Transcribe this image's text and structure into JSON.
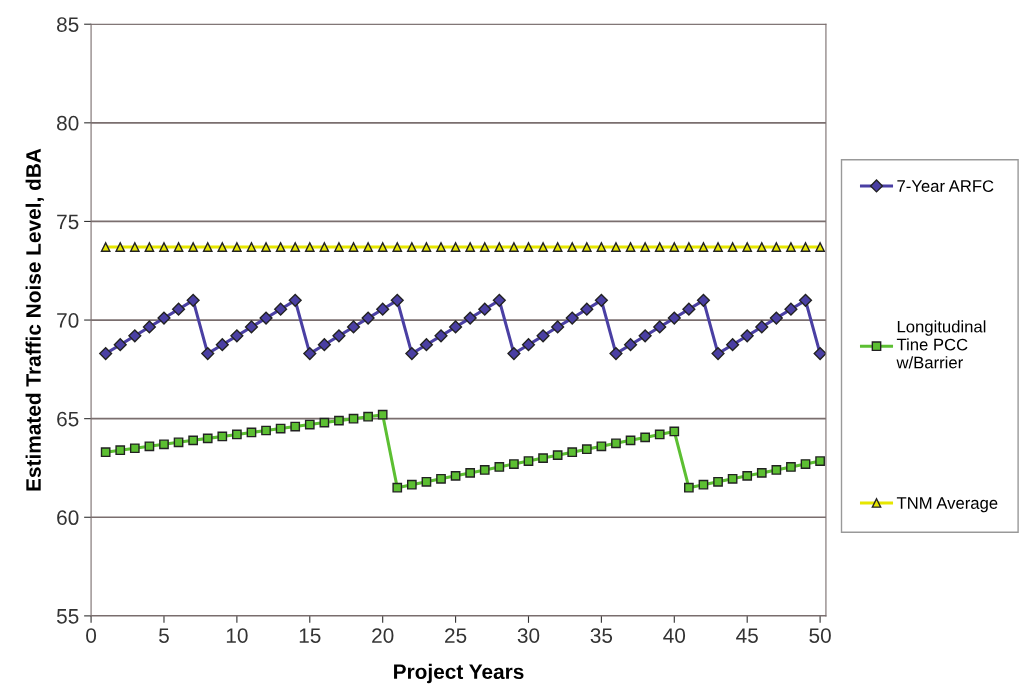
{
  "chart_data": {
    "type": "line",
    "xlabel": "Project Years",
    "ylabel": "Estimated Traffic Noise Level, dBA",
    "x": [
      1,
      2,
      3,
      4,
      5,
      6,
      7,
      8,
      9,
      10,
      11,
      12,
      13,
      14,
      15,
      16,
      17,
      18,
      19,
      20,
      21,
      22,
      23,
      24,
      25,
      26,
      27,
      28,
      29,
      30,
      31,
      32,
      33,
      34,
      35,
      36,
      37,
      38,
      39,
      40,
      41,
      42,
      43,
      44,
      45,
      46,
      47,
      48,
      49,
      50
    ],
    "xlim": [
      0,
      50.4
    ],
    "xticks": [
      0,
      5,
      10,
      15,
      20,
      25,
      30,
      35,
      40,
      45,
      50
    ],
    "ylim": [
      55,
      85
    ],
    "yticks": [
      55,
      60,
      65,
      70,
      75,
      80,
      85
    ],
    "grid": "y",
    "legend": "right",
    "line_style": "solid",
    "series": [
      {
        "name": "7-Year ARFC",
        "color": "#4a3fa3",
        "marker": "diamond",
        "values": [
          68.3,
          68.75,
          69.2,
          69.65,
          70.1,
          70.55,
          71.0,
          68.3,
          68.75,
          69.2,
          69.65,
          70.1,
          70.55,
          71.0,
          68.3,
          68.75,
          69.2,
          69.65,
          70.1,
          70.55,
          71.0,
          68.3,
          68.75,
          69.2,
          69.65,
          70.1,
          70.55,
          71.0,
          68.3,
          68.75,
          69.2,
          69.65,
          70.1,
          70.55,
          71.0,
          68.3,
          68.75,
          69.2,
          69.65,
          70.1,
          70.55,
          71.0,
          68.3,
          68.75,
          69.2,
          69.65,
          70.1,
          70.55,
          71.0,
          68.3
        ]
      },
      {
        "name": "Longitudinal\nTine PCC\nw/Barrier",
        "color": "#5cbf32",
        "marker": "square",
        "values": [
          63.3,
          63.4,
          63.5,
          63.6,
          63.7,
          63.8,
          63.9,
          64.0,
          64.1,
          64.2,
          64.3,
          64.4,
          64.5,
          64.6,
          64.7,
          64.8,
          64.9,
          65.0,
          65.1,
          65.2,
          61.5,
          61.65,
          61.8,
          61.95,
          62.1,
          62.25,
          62.4,
          62.55,
          62.7,
          62.85,
          63.0,
          63.15,
          63.3,
          63.45,
          63.6,
          63.75,
          63.9,
          64.05,
          64.2,
          64.35,
          61.5,
          61.65,
          61.8,
          61.95,
          62.1,
          62.25,
          62.4,
          62.55,
          62.7,
          62.85
        ]
      },
      {
        "name": "TNM Average",
        "color": "#e6e600",
        "marker": "triangle",
        "values": [
          73.7,
          73.7,
          73.7,
          73.7,
          73.7,
          73.7,
          73.7,
          73.7,
          73.7,
          73.7,
          73.7,
          73.7,
          73.7,
          73.7,
          73.7,
          73.7,
          73.7,
          73.7,
          73.7,
          73.7,
          73.7,
          73.7,
          73.7,
          73.7,
          73.7,
          73.7,
          73.7,
          73.7,
          73.7,
          73.7,
          73.7,
          73.7,
          73.7,
          73.7,
          73.7,
          73.7,
          73.7,
          73.7,
          73.7,
          73.7,
          73.7,
          73.7,
          73.7,
          73.7,
          73.7,
          73.7,
          73.7,
          73.7,
          73.7,
          73.7
        ]
      }
    ]
  }
}
